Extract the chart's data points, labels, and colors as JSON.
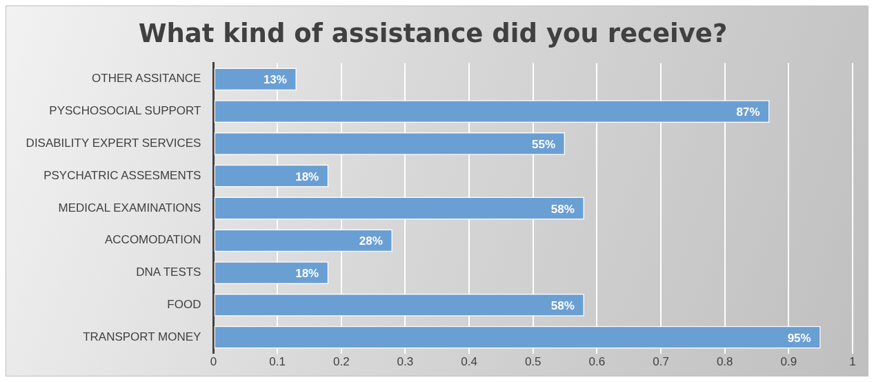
{
  "chart_data": {
    "type": "bar",
    "orientation": "horizontal",
    "title": "What kind of assistance did you receive?",
    "categories": [
      "OTHER ASSITANCE",
      "PYSCHOSOCIAL SUPPORT",
      "DISABILITY EXPERT SERVICES",
      "PSYCHATRIC ASSESMENTS",
      "MEDICAL EXAMINATIONS",
      "ACCOMODATION",
      "DNA TESTS",
      "FOOD",
      "TRANSPORT MONEY"
    ],
    "values": [
      0.13,
      0.87,
      0.55,
      0.18,
      0.58,
      0.28,
      0.18,
      0.58,
      0.95
    ],
    "value_labels": [
      "13%",
      "87%",
      "55%",
      "18%",
      "58%",
      "28%",
      "18%",
      "58%",
      "95%"
    ],
    "color": "#6a9fd4",
    "xlim": [
      0,
      1
    ],
    "xticks": [
      0,
      0.1,
      0.2,
      0.3,
      0.4,
      0.5,
      0.6,
      0.7,
      0.8,
      0.9,
      1
    ],
    "grid": "x",
    "legend": false
  }
}
